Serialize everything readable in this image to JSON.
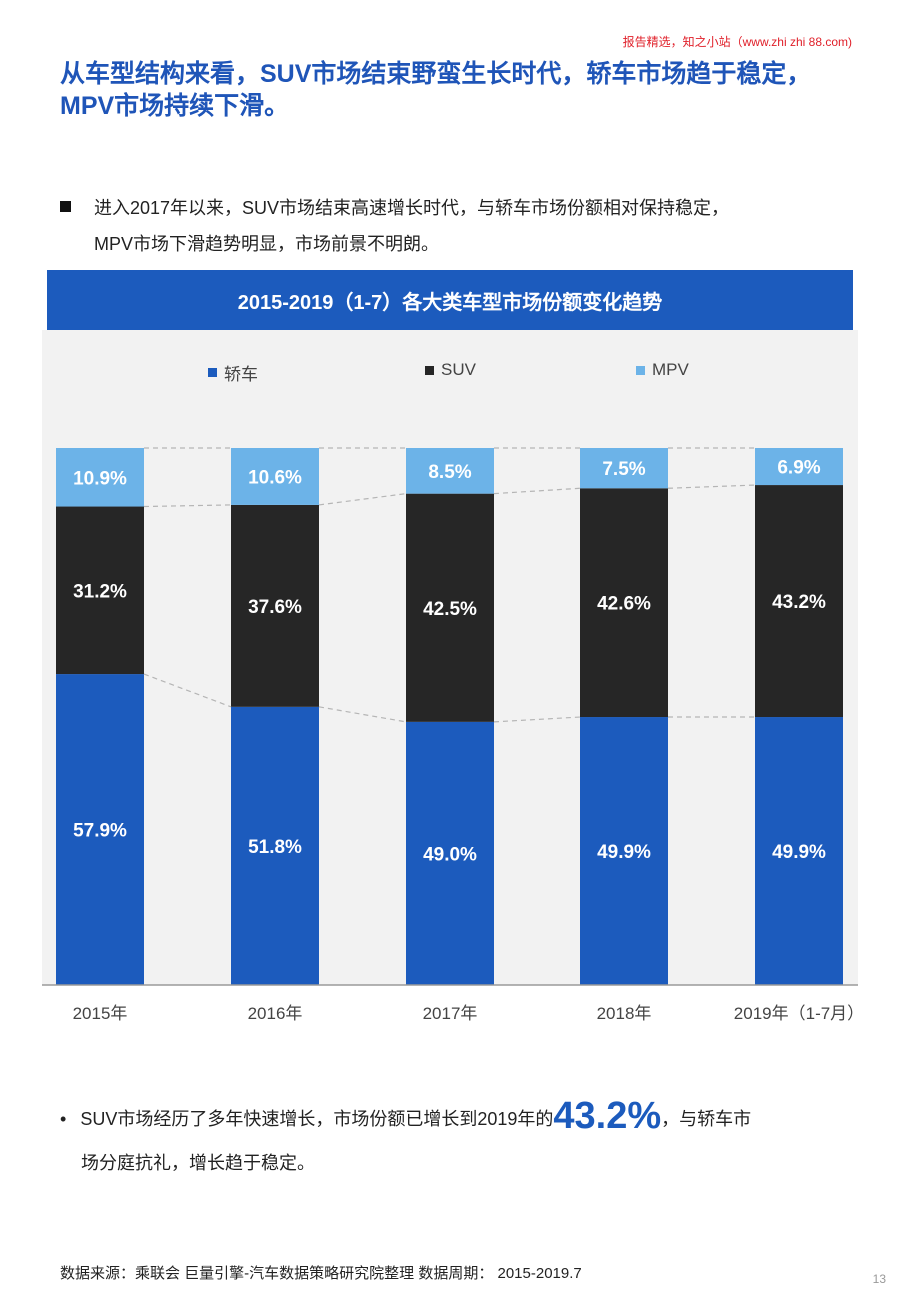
{
  "watermark": "报告精选，知之小站（www.zhi zhi 88.com)",
  "headline": {
    "line1": "从车型结构来看，SUV市场结束野蛮生长时代，轿车市场趋于稳定，",
    "line2": "MPV市场持续下滑。"
  },
  "bullet1": {
    "line1": "进入2017年以来，SUV市场结束高速增长时代，与轿车市场份额相对保持稳定，",
    "line2": "MPV市场下滑趋势明显，市场前景不明朗。"
  },
  "chart_data": {
    "type": "bar",
    "stacked": true,
    "title": "2015-2019（1-7）各大类车型市场份额变化趋势",
    "categories": [
      "2015年",
      "2016年",
      "2017年",
      "2018年",
      "2019年（1-7月）"
    ],
    "series": [
      {
        "name": "轿车",
        "color": "#1c5bbd",
        "values": [
          57.9,
          51.8,
          49.0,
          49.9,
          49.9
        ],
        "labels": [
          "57.9%",
          "51.8%",
          "49.0%",
          "49.9%",
          "49.9%"
        ]
      },
      {
        "name": "SUV",
        "color": "#262626",
        "values": [
          31.2,
          37.6,
          42.5,
          42.6,
          43.2
        ],
        "labels": [
          "31.2%",
          "37.6%",
          "42.5%",
          "42.6%",
          "43.2%"
        ]
      },
      {
        "name": "MPV",
        "color": "#6cb3e8",
        "values": [
          10.9,
          10.6,
          8.5,
          7.5,
          6.9
        ],
        "labels": [
          "10.9%",
          "10.6%",
          "8.5%",
          "7.5%",
          "6.9%"
        ]
      }
    ],
    "ylim": [
      0,
      100
    ],
    "grid": false,
    "legend_position": "top",
    "xlabel": "",
    "ylabel": ""
  },
  "bullet2": {
    "dot": "•",
    "text_before": "SUV市场经历了多年快速增长，市场份额已增长到2019年的",
    "highlight": "43.2%",
    "text_after": "，与轿车市",
    "line2": "场分庭抗礼，增长趋于稳定。"
  },
  "source": "数据来源：乘联会 巨量引擎-汽车数据策略研究院整理 数据周期： 2015-2019.7",
  "page_number": "13"
}
